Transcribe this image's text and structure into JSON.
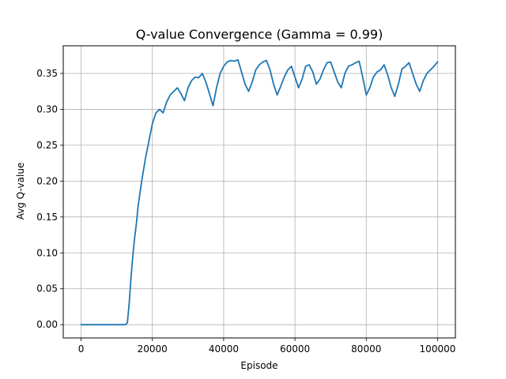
{
  "chart_data": {
    "type": "line",
    "title": "Q-value Convergence (Gamma = 0.99)",
    "xlabel": "Episode",
    "ylabel": "Avg Q-value",
    "xlim": [
      -5000,
      105000
    ],
    "ylim": [
      -0.0185,
      0.3885
    ],
    "xticks": [
      0,
      20000,
      40000,
      60000,
      80000,
      100000
    ],
    "xtick_labels": [
      "0",
      "20000",
      "40000",
      "60000",
      "80000",
      "100000"
    ],
    "yticks": [
      0.0,
      0.05,
      0.1,
      0.15,
      0.2,
      0.25,
      0.3,
      0.35
    ],
    "ytick_labels": [
      "0.00",
      "0.05",
      "0.10",
      "0.15",
      "0.20",
      "0.25",
      "0.30",
      "0.35"
    ],
    "grid": true,
    "line_color": "#1f77b4",
    "series": [
      {
        "x": [
          0,
          5000,
          10000,
          12000,
          12500,
          13000,
          13500,
          14000,
          14500,
          15000,
          15500,
          16000,
          17000,
          18000,
          19000,
          20000,
          21000,
          22000,
          23000,
          24000,
          25000,
          26000,
          27000,
          28000,
          29000,
          30000,
          31000,
          32000,
          33000,
          34000,
          35000,
          36000,
          37000,
          38000,
          39000,
          40000,
          41000,
          42000,
          43000,
          44000,
          45000,
          46000,
          47000,
          48000,
          49000,
          50000,
          51000,
          52000,
          53000,
          54000,
          55000,
          56000,
          57000,
          58000,
          59000,
          60000,
          61000,
          62000,
          63000,
          64000,
          65000,
          66000,
          67000,
          68000,
          69000,
          70000,
          71000,
          72000,
          73000,
          74000,
          75000,
          76000,
          77000,
          78000,
          79000,
          80000,
          81000,
          82000,
          83000,
          84000,
          85000,
          86000,
          87000,
          88000,
          89000,
          90000,
          91000,
          92000,
          93000,
          94000,
          95000,
          96000,
          97000,
          98000,
          99000,
          100000
        ],
        "y": [
          0.0,
          0.0,
          0.0,
          0.0,
          0.0,
          0.003,
          0.03,
          0.065,
          0.095,
          0.12,
          0.14,
          0.165,
          0.2,
          0.23,
          0.255,
          0.28,
          0.295,
          0.3,
          0.295,
          0.31,
          0.32,
          0.325,
          0.33,
          0.322,
          0.312,
          0.33,
          0.34,
          0.345,
          0.344,
          0.35,
          0.338,
          0.322,
          0.305,
          0.33,
          0.35,
          0.36,
          0.366,
          0.368,
          0.367,
          0.369,
          0.352,
          0.335,
          0.325,
          0.338,
          0.355,
          0.362,
          0.366,
          0.368,
          0.355,
          0.335,
          0.32,
          0.332,
          0.345,
          0.355,
          0.36,
          0.345,
          0.33,
          0.342,
          0.36,
          0.362,
          0.352,
          0.335,
          0.342,
          0.355,
          0.365,
          0.366,
          0.352,
          0.338,
          0.33,
          0.35,
          0.36,
          0.362,
          0.365,
          0.367,
          0.345,
          0.32,
          0.33,
          0.345,
          0.352,
          0.355,
          0.362,
          0.348,
          0.33,
          0.318,
          0.335,
          0.356,
          0.36,
          0.365,
          0.35,
          0.335,
          0.325,
          0.34,
          0.35,
          0.355,
          0.36,
          0.366
        ]
      }
    ]
  }
}
